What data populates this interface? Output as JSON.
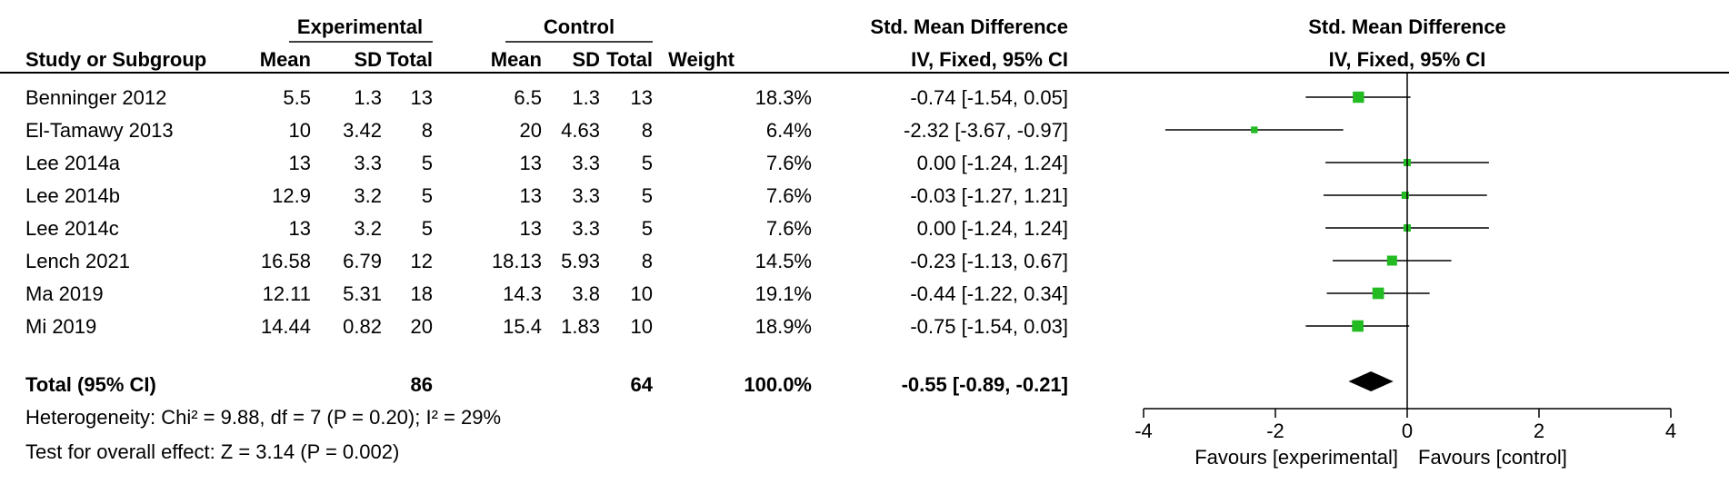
{
  "headers": {
    "group_experimental": "Experimental",
    "group_control": "Control",
    "effect_title": "Std. Mean Difference",
    "effect_method": "IV, Fixed, 95% CI",
    "plot_title": "Std. Mean Difference",
    "plot_method": "IV, Fixed, 95% CI",
    "study": "Study or Subgroup",
    "mean": "Mean",
    "sd": "SD",
    "total": "Total",
    "weight": "Weight"
  },
  "total_row": {
    "label": "Total (95% CI)",
    "exp_total": "86",
    "ctl_total": "64",
    "weight": "100.0%",
    "ci_text": "-0.55 [-0.89, -0.21]"
  },
  "footnotes": {
    "heterogeneity": "Heterogeneity: Chi² = 9.88, df = 7 (P = 0.20); I² = 29%",
    "overall": "Test for overall effect: Z = 3.14 (P = 0.002)"
  },
  "chart_data": {
    "type": "forest",
    "xlim": [
      -4,
      4
    ],
    "xticks": [
      "-4",
      "-2",
      "0",
      "2",
      "4"
    ],
    "xlabel_left": "Favours [experimental]",
    "xlabel_right": "Favours [control]",
    "marker_color": "#22bb22",
    "studies": [
      {
        "name": "Benninger 2012",
        "exp_mean": "5.5",
        "exp_sd": "1.3",
        "exp_total": "13",
        "ctl_mean": "6.5",
        "ctl_sd": "1.3",
        "ctl_total": "13",
        "weight": "18.3%",
        "ci_text": "-0.74 [-1.54, 0.05]",
        "est": -0.74,
        "lo": -1.54,
        "hi": 0.05,
        "w": 18.3
      },
      {
        "name": "El-Tamawy 2013",
        "exp_mean": "10",
        "exp_sd": "3.42",
        "exp_total": "8",
        "ctl_mean": "20",
        "ctl_sd": "4.63",
        "ctl_total": "8",
        "weight": "6.4%",
        "ci_text": "-2.32 [-3.67, -0.97]",
        "est": -2.32,
        "lo": -3.67,
        "hi": -0.97,
        "w": 6.4
      },
      {
        "name": "Lee 2014a",
        "exp_mean": "13",
        "exp_sd": "3.3",
        "exp_total": "5",
        "ctl_mean": "13",
        "ctl_sd": "3.3",
        "ctl_total": "5",
        "weight": "7.6%",
        "ci_text": "0.00 [-1.24, 1.24]",
        "est": 0.0,
        "lo": -1.24,
        "hi": 1.24,
        "w": 7.6
      },
      {
        "name": "Lee 2014b",
        "exp_mean": "12.9",
        "exp_sd": "3.2",
        "exp_total": "5",
        "ctl_mean": "13",
        "ctl_sd": "3.3",
        "ctl_total": "5",
        "weight": "7.6%",
        "ci_text": "-0.03 [-1.27, 1.21]",
        "est": -0.03,
        "lo": -1.27,
        "hi": 1.21,
        "w": 7.6
      },
      {
        "name": "Lee 2014c",
        "exp_mean": "13",
        "exp_sd": "3.2",
        "exp_total": "5",
        "ctl_mean": "13",
        "ctl_sd": "3.3",
        "ctl_total": "5",
        "weight": "7.6%",
        "ci_text": "0.00 [-1.24, 1.24]",
        "est": 0.0,
        "lo": -1.24,
        "hi": 1.24,
        "w": 7.6
      },
      {
        "name": "Lench 2021",
        "exp_mean": "16.58",
        "exp_sd": "6.79",
        "exp_total": "12",
        "ctl_mean": "18.13",
        "ctl_sd": "5.93",
        "ctl_total": "8",
        "weight": "14.5%",
        "ci_text": "-0.23 [-1.13, 0.67]",
        "est": -0.23,
        "lo": -1.13,
        "hi": 0.67,
        "w": 14.5
      },
      {
        "name": "Ma 2019",
        "exp_mean": "12.11",
        "exp_sd": "5.31",
        "exp_total": "18",
        "ctl_mean": "14.3",
        "ctl_sd": "3.8",
        "ctl_total": "10",
        "weight": "19.1%",
        "ci_text": "-0.44 [-1.22, 0.34]",
        "est": -0.44,
        "lo": -1.22,
        "hi": 0.34,
        "w": 19.1
      },
      {
        "name": "Mi 2019",
        "exp_mean": "14.44",
        "exp_sd": "0.82",
        "exp_total": "20",
        "ctl_mean": "15.4",
        "ctl_sd": "1.83",
        "ctl_total": "10",
        "weight": "18.9%",
        "ci_text": "-0.75 [-1.54, 0.03]",
        "est": -0.75,
        "lo": -1.54,
        "hi": 0.03,
        "w": 18.9
      }
    ],
    "pooled": {
      "est": -0.55,
      "lo": -0.89,
      "hi": -0.21
    }
  }
}
